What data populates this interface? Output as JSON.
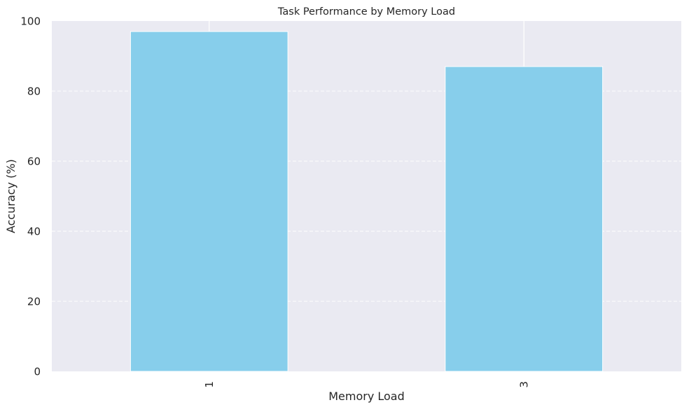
{
  "chart_data": {
    "type": "bar",
    "title": "Task Performance by Memory Load",
    "xlabel": "Memory Load",
    "ylabel": "Accuracy (%)",
    "categories": [
      "1",
      "3"
    ],
    "values": [
      97,
      87
    ],
    "ylim": [
      0,
      100
    ],
    "yticks": [
      "0",
      "20",
      "40",
      "60",
      "80",
      "100"
    ],
    "grid": true,
    "grid_style": "dashed horizontal",
    "x_tick_rotation": "vertical",
    "bar_color": "#87CEEB",
    "background_color": "#EAEAF2",
    "grid_color": "#ffffff"
  }
}
